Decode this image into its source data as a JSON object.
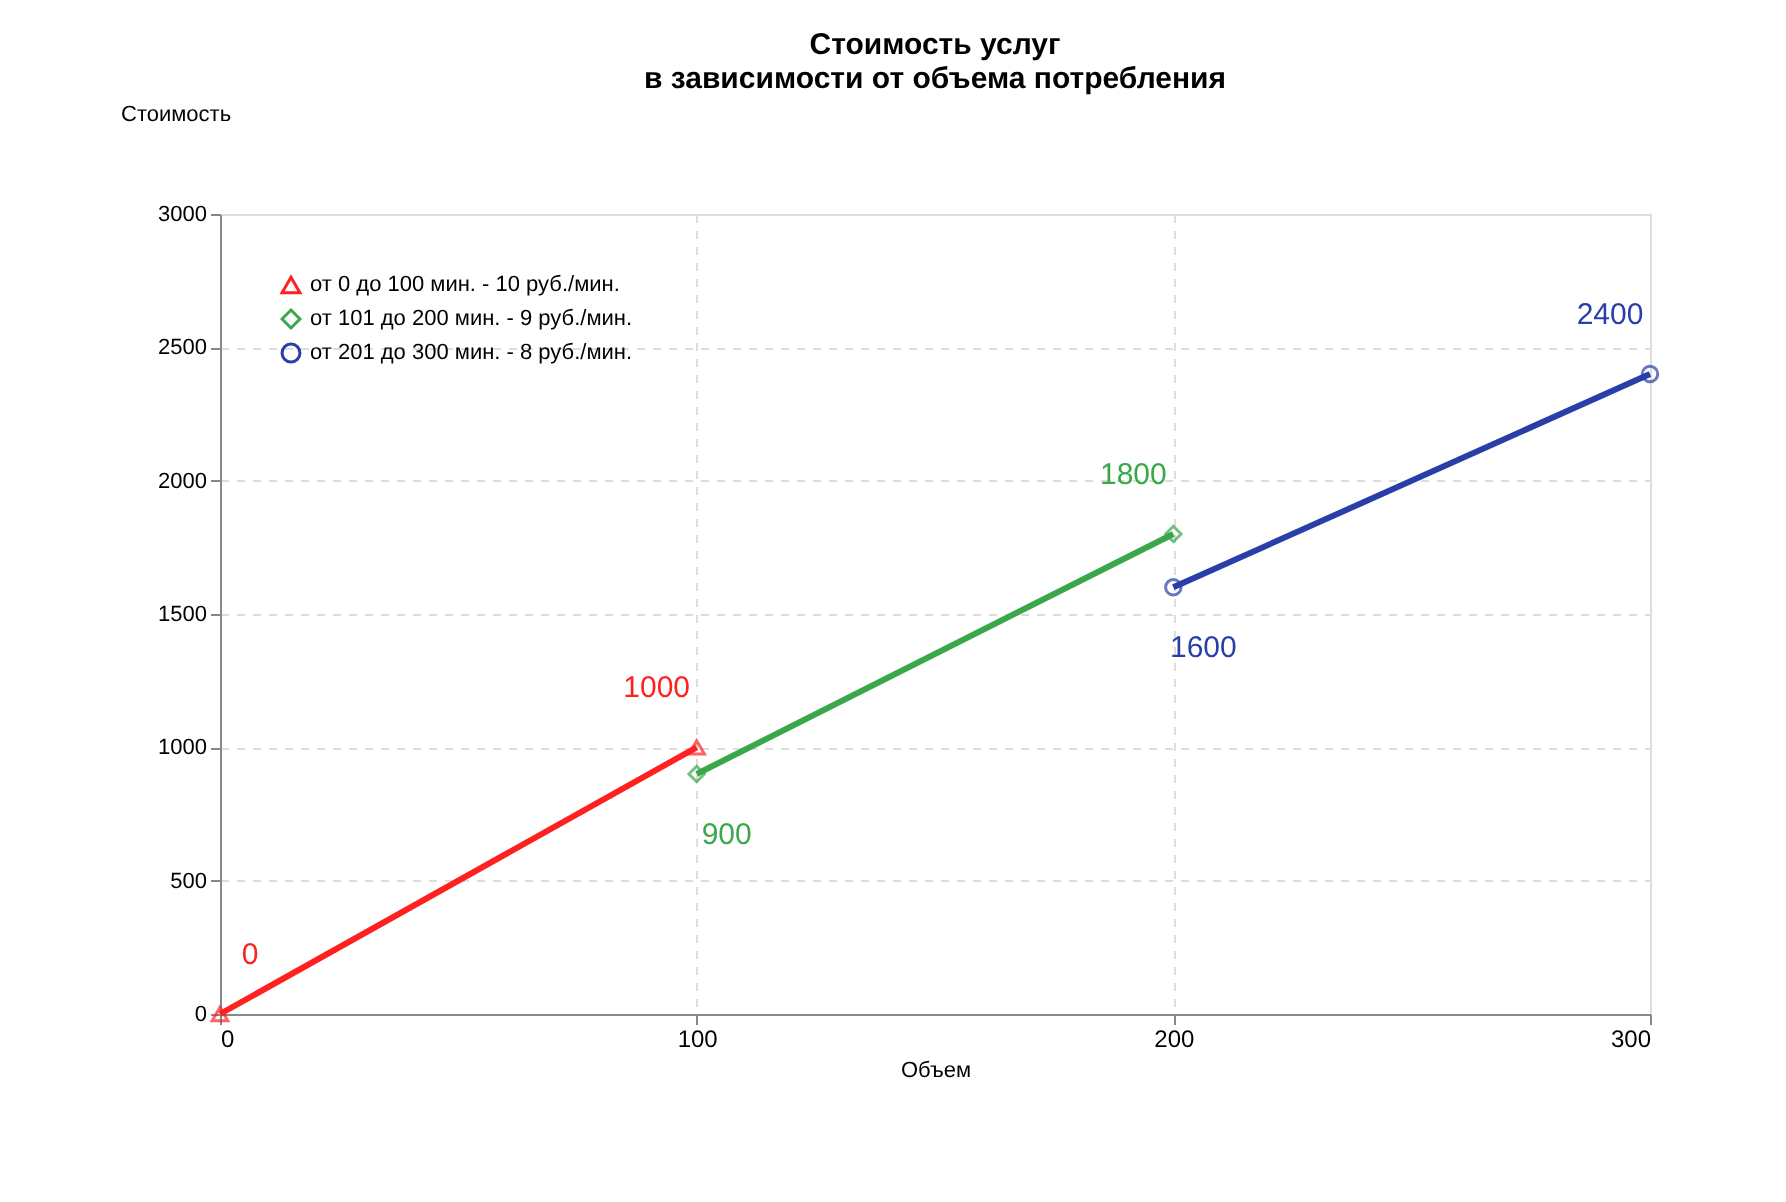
{
  "chart_data": {
    "type": "line",
    "title": [
      "Стоимость услуг",
      "в зависимости от объема потребления"
    ],
    "xlabel": "Объем",
    "ylabel": "Стоимость",
    "series": [
      {
        "name": "от 0 до 100 мин. - 10 руб./мин.",
        "color": "#ff2020",
        "marker": "triangle",
        "x": [
          0,
          100
        ],
        "values": [
          0,
          1000
        ]
      },
      {
        "name": "от 101 до 200 мин. - 9 руб./мин.",
        "color": "#3aa84a",
        "marker": "diamond",
        "x": [
          100,
          200
        ],
        "values": [
          900,
          1800
        ]
      },
      {
        "name": "от 201 до 300 мин. - 8 руб./мин.",
        "color": "#2a3ea8",
        "marker": "circle",
        "x": [
          200,
          300
        ],
        "values": [
          1600,
          2400
        ]
      }
    ],
    "xlim": [
      0,
      300
    ],
    "xticks": [
      0,
      100,
      200,
      300
    ],
    "ylim": [
      0,
      3000
    ],
    "yticks": [
      0,
      500,
      1000,
      1500,
      2000,
      2500,
      3000
    ],
    "grid": true,
    "legend": "top left",
    "data_labels": true,
    "line_style": "solid"
  }
}
